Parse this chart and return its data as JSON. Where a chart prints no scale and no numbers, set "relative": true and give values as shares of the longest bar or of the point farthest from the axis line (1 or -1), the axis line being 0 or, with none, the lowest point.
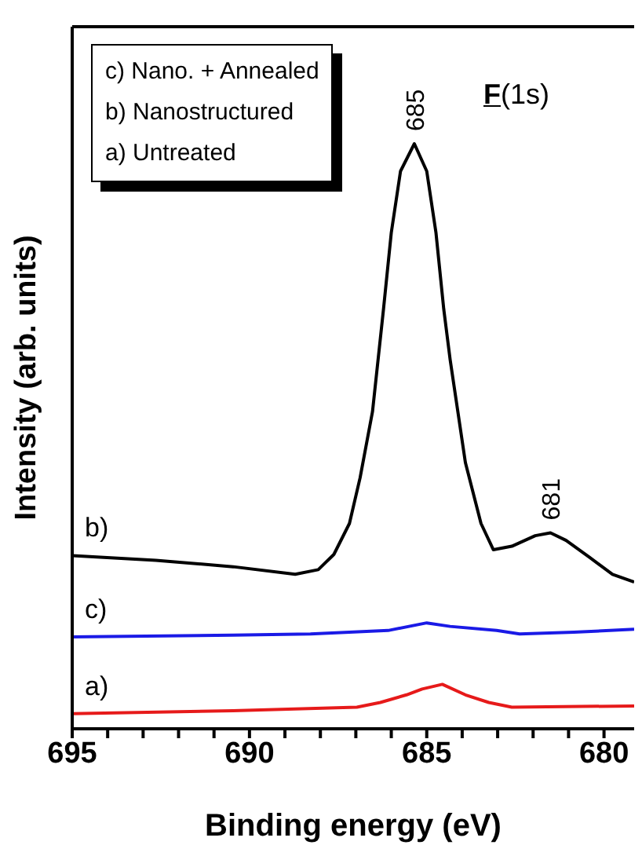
{
  "chart_data": {
    "type": "line",
    "relative": true,
    "xlabel": "Binding energy (eV)",
    "ylabel": "Intensity (arb. units)",
    "xlim": [
      695,
      679.15
    ],
    "xticks": [
      695,
      {
        "value": 694,
        "label": null
      },
      {
        "value": 693,
        "label": null
      },
      {
        "value": 692,
        "label": null
      },
      {
        "value": 691,
        "label": null
      },
      690,
      {
        "value": 689,
        "label": null
      },
      {
        "value": 688,
        "label": null
      },
      {
        "value": 687,
        "label": null
      },
      {
        "value": 686,
        "label": null
      },
      685,
      {
        "value": 684,
        "label": null
      },
      {
        "value": 683,
        "label": null
      },
      {
        "value": 682,
        "label": null
      },
      {
        "value": 681,
        "label": null
      },
      680
    ],
    "marker": "none",
    "line_style": "solid",
    "series": [
      {
        "name": "b)",
        "color": "#000000",
        "x": [
          695,
          692.64,
          690.46,
          688.71,
          688.06,
          687.62,
          687.18,
          686.88,
          686.53,
          686.22,
          686.0,
          685.74,
          685.35,
          685.0,
          684.74,
          684.52,
          684.34,
          683.91,
          683.47,
          683.12,
          682.6,
          681.94,
          681.51,
          681.07,
          680.41,
          679.76,
          679.15
        ],
        "values": [
          0.296,
          0.288,
          0.277,
          0.264,
          0.272,
          0.298,
          0.351,
          0.429,
          0.542,
          0.717,
          0.848,
          0.953,
          1,
          0.953,
          0.848,
          0.717,
          0.631,
          0.455,
          0.351,
          0.306,
          0.312,
          0.33,
          0.335,
          0.322,
          0.293,
          0.264,
          0.251
        ]
      },
      {
        "name": "c)",
        "color": "#1a1ae6",
        "x": [
          695,
          690.46,
          688.28,
          686.09,
          685.0,
          684.34,
          683.03,
          682.38,
          680.85,
          679.15
        ],
        "values": [
          0.157,
          0.16,
          0.162,
          0.168,
          0.181,
          0.175,
          0.168,
          0.162,
          0.165,
          0.17
        ]
      },
      {
        "name": "a)",
        "color": "#e61a1a",
        "x": [
          695,
          690.46,
          686.97,
          686.31,
          685.57,
          685.13,
          684.56,
          683.91,
          683.25,
          682.6,
          679.15
        ],
        "values": [
          0.026,
          0.031,
          0.037,
          0.045,
          0.058,
          0.068,
          0.076,
          0.058,
          0.045,
          0.037,
          0.039
        ]
      }
    ],
    "annotations": [
      "c) Nano. + Annealed",
      "b) Nanostructured",
      "a) Untreated",
      "F(1s)",
      {
        "text": "685",
        "x": 685.35,
        "y": 1
      },
      {
        "text": "681",
        "x": 681.51,
        "y": 0.335
      }
    ]
  }
}
